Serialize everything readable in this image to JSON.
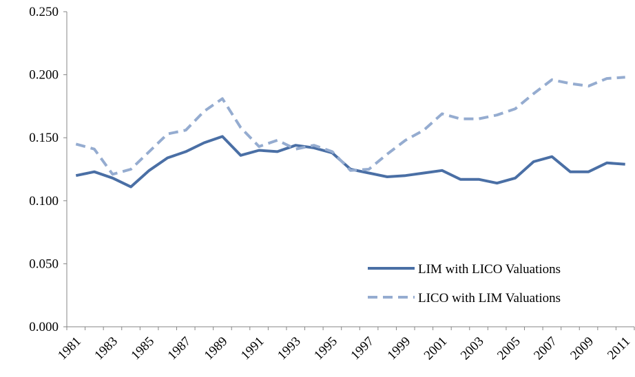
{
  "chart_data": {
    "type": "line",
    "categories": [
      "1981",
      null,
      "1983",
      null,
      "1985",
      null,
      "1987",
      null,
      "1989",
      null,
      "1991",
      null,
      "1993",
      null,
      "1995",
      null,
      "1997",
      null,
      "1999",
      null,
      "2001",
      null,
      "2003",
      null,
      "2005",
      null,
      "2007",
      null,
      "2009",
      null,
      "2011"
    ],
    "series": [
      {
        "name": "LIM with LICO Valuations",
        "color": "#4a6fa5",
        "dash": false,
        "values": [
          0.12,
          0.123,
          0.118,
          0.111,
          0.124,
          0.134,
          0.139,
          0.146,
          0.151,
          0.136,
          0.14,
          0.139,
          0.144,
          0.142,
          0.138,
          0.125,
          0.122,
          0.119,
          0.12,
          0.122,
          0.124,
          0.117,
          0.117,
          0.114,
          0.118,
          0.131,
          0.135,
          0.123,
          0.123,
          0.13,
          0.129
        ]
      },
      {
        "name": "LICO with LIM Valuations",
        "color": "#95acd0",
        "dash": true,
        "values": [
          0.145,
          0.141,
          0.121,
          0.125,
          0.139,
          0.153,
          0.156,
          0.171,
          0.181,
          0.158,
          0.143,
          0.148,
          0.141,
          0.144,
          0.139,
          0.124,
          0.125,
          0.137,
          0.148,
          0.156,
          0.169,
          0.165,
          0.165,
          0.168,
          0.173,
          0.185,
          0.196,
          0.193,
          0.191,
          0.197,
          0.198
        ]
      }
    ],
    "ylim": [
      0,
      0.25
    ],
    "yticks": [
      {
        "value": 0,
        "label": "0.000"
      },
      {
        "value": 0.05,
        "label": "0.050"
      },
      {
        "value": 0.1,
        "label": "0.100"
      },
      {
        "value": 0.15,
        "label": "0.150"
      },
      {
        "value": 0.2,
        "label": "0.200"
      },
      {
        "value": 0.25,
        "label": "0.250"
      }
    ],
    "grid": false,
    "legend": "lower right"
  }
}
